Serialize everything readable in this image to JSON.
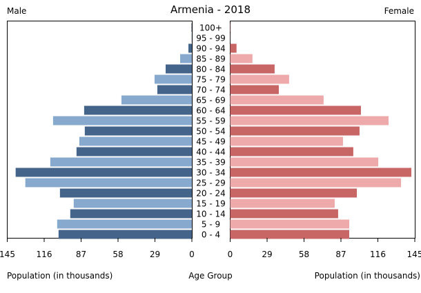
{
  "chart_data": {
    "type": "bar",
    "title": "Armenia - 2018",
    "left_label": "Male",
    "right_label": "Female",
    "xlabel_left": "Population (in thousands)",
    "xlabel_center": "Age Group",
    "xlabel_right": "Population (in thousands)",
    "xlim": [
      0,
      145
    ],
    "ticks_left": [
      "145",
      "116",
      "87",
      "58",
      "29",
      "0"
    ],
    "ticks_right": [
      "0",
      "29",
      "58",
      "87",
      "116",
      "145"
    ],
    "tick_values": [
      0,
      29,
      58,
      87,
      116,
      145
    ],
    "categories": [
      "0 - 4",
      "5 - 9",
      "10 - 14",
      "15 - 19",
      "20 - 24",
      "25 - 29",
      "30 - 34",
      "35 - 39",
      "40 - 44",
      "45 - 49",
      "50 - 54",
      "55 - 59",
      "60 - 64",
      "65 - 69",
      "70 - 74",
      "75 - 79",
      "80 - 84",
      "85 - 89",
      "90 - 94",
      "95 - 99",
      "100+"
    ],
    "series": [
      {
        "name": "Male",
        "values": [
          104.7,
          105.8,
          95.5,
          92.8,
          103.6,
          130.8,
          138.4,
          111.2,
          90.6,
          88.4,
          84.1,
          109.0,
          84.6,
          55.3,
          27.1,
          29.3,
          20.6,
          9.2,
          2.7,
          0.2,
          0.3
        ]
      },
      {
        "name": "Female",
        "values": [
          93.5,
          93.5,
          84.8,
          82.1,
          99.5,
          134.2,
          142.3,
          116.3,
          96.7,
          88.6,
          101.6,
          124.4,
          102.7,
          73.4,
          38.2,
          46.3,
          34.9,
          17.5,
          5.0,
          0.1,
          0.2
        ]
      }
    ],
    "colors": {
      "male_dark": "#44648a",
      "male_light": "#87a9cd",
      "female_dark": "#c86565",
      "female_light": "#eeaaaa"
    },
    "grid": false
  }
}
